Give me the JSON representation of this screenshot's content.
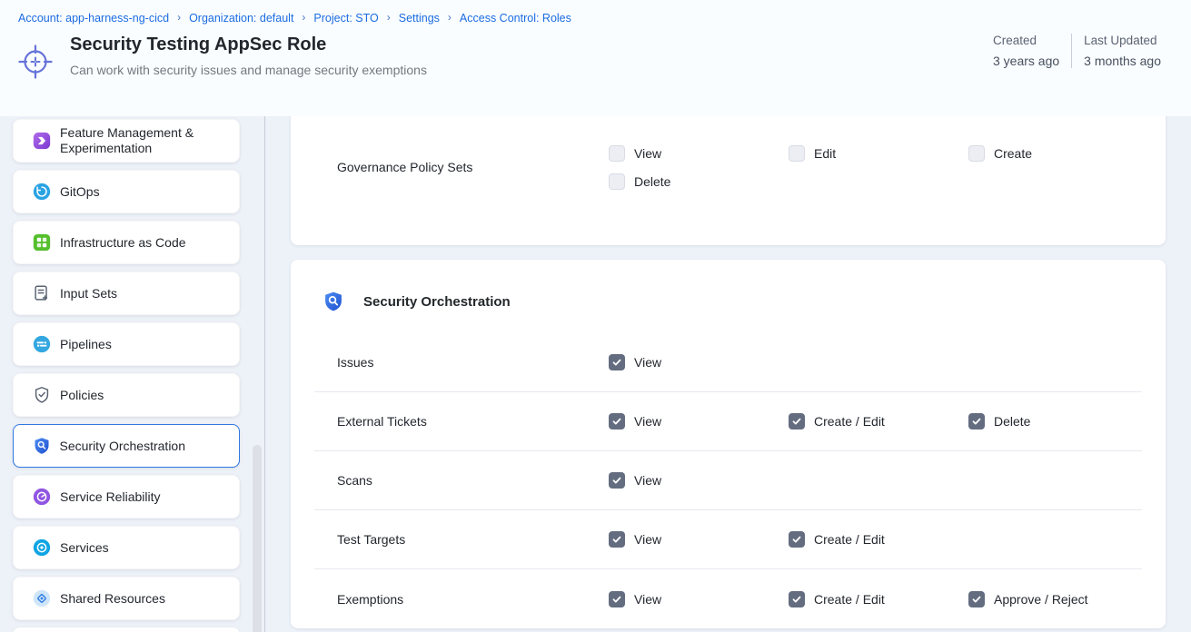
{
  "colors": {
    "accent_blue": "#1b6ce1",
    "selected_border": "#2f78e0",
    "checkbox_checked": "#646d80",
    "topbar_bg": "#fafdff",
    "content_bg": "#edf1f8"
  },
  "breadcrumb": {
    "separator": "›",
    "items": [
      "Account: app-harness-ng-cicd",
      "Organization: default",
      "Project: STO",
      "Settings",
      "Access Control: Roles"
    ]
  },
  "header": {
    "title": "Security Testing AppSec Role",
    "subtitle": "Can work with security issues and manage security exemptions",
    "icon": "role-crosshair",
    "meta": {
      "created_label": "Created",
      "created_value": "3 years ago",
      "updated_label": "Last Updated",
      "updated_value": "3 months ago"
    }
  },
  "sidebar": {
    "items": [
      {
        "label": "Feature Management & Experimentation",
        "icon": "feature-flags",
        "selected": false
      },
      {
        "label": "GitOps",
        "icon": "gitops",
        "selected": false
      },
      {
        "label": "Infrastructure as Code",
        "icon": "iac",
        "selected": false
      },
      {
        "label": "Input Sets",
        "icon": "input-sets",
        "selected": false
      },
      {
        "label": "Pipelines",
        "icon": "pipelines",
        "selected": false
      },
      {
        "label": "Policies",
        "icon": "policies",
        "selected": false
      },
      {
        "label": "Security Orchestration",
        "icon": "security-orchestration",
        "selected": true
      },
      {
        "label": "Service Reliability",
        "icon": "service-reliability",
        "selected": false
      },
      {
        "label": "Services",
        "icon": "services",
        "selected": false
      },
      {
        "label": "Shared Resources",
        "icon": "shared-resources",
        "selected": false
      }
    ]
  },
  "main": {
    "cards": [
      {
        "title": "",
        "icon": "",
        "clipped": true,
        "rows": [
          {
            "label": "Governance Policy Sets",
            "permissions": [
              {
                "label": "View",
                "checked": false
              },
              {
                "label": "Edit",
                "checked": false
              },
              {
                "label": "Create",
                "checked": false
              },
              {
                "label": "Delete",
                "checked": false
              }
            ]
          }
        ]
      },
      {
        "title": "Security Orchestration",
        "icon": "security-orchestration",
        "clipped": false,
        "rows": [
          {
            "label": "Issues",
            "permissions": [
              {
                "label": "View",
                "checked": true
              }
            ]
          },
          {
            "label": "External Tickets",
            "permissions": [
              {
                "label": "View",
                "checked": true
              },
              {
                "label": "Create / Edit",
                "checked": true
              },
              {
                "label": "Delete",
                "checked": true
              }
            ]
          },
          {
            "label": "Scans",
            "permissions": [
              {
                "label": "View",
                "checked": true
              }
            ]
          },
          {
            "label": "Test Targets",
            "permissions": [
              {
                "label": "View",
                "checked": true
              },
              {
                "label": "Create / Edit",
                "checked": true
              }
            ]
          },
          {
            "label": "Exemptions",
            "permissions": [
              {
                "label": "View",
                "checked": true
              },
              {
                "label": "Create / Edit",
                "checked": true
              },
              {
                "label": "Approve / Reject",
                "checked": true
              }
            ]
          }
        ]
      }
    ]
  }
}
